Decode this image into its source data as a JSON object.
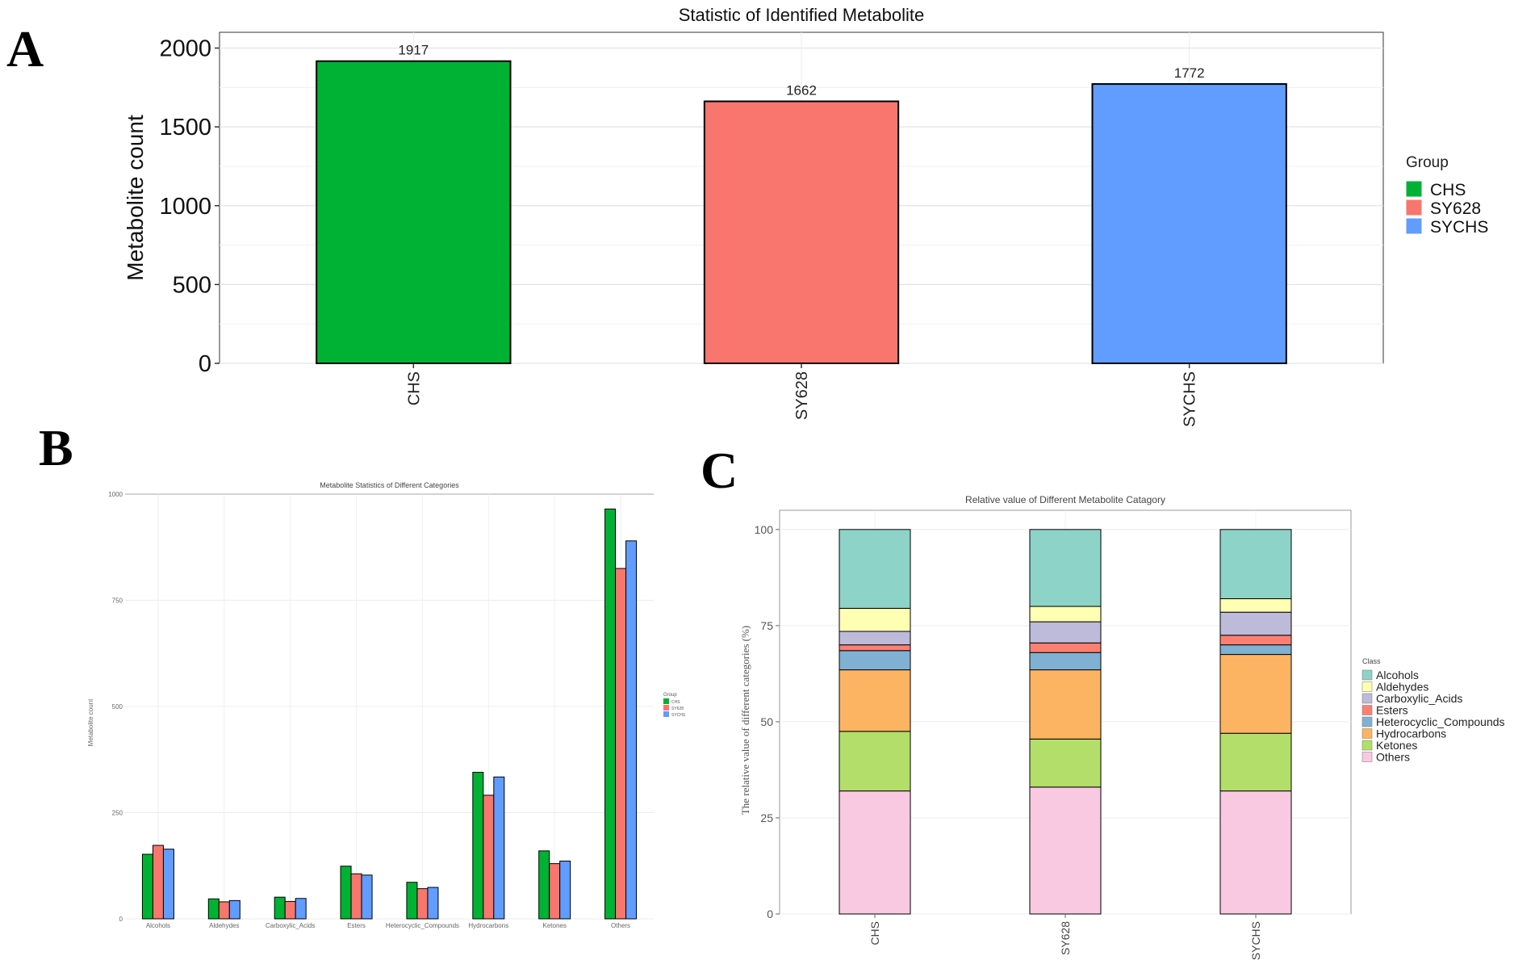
{
  "chart_data": [
    {
      "panel": "A",
      "type": "bar",
      "title": "Statistic of Identified Metabolite",
      "xlabel": "",
      "ylabel": "Metabolite count",
      "ylim": [
        0,
        2100
      ],
      "yticks": [
        0,
        500,
        1000,
        1500,
        2000
      ],
      "categories": [
        "CHS",
        "SY628",
        "SYCHS"
      ],
      "values": [
        1917,
        1662,
        1772
      ],
      "colors": [
        "#00b233",
        "#f8766d",
        "#619cff"
      ],
      "legend": {
        "title": "Group",
        "position": "right",
        "labels": [
          "CHS",
          "SY628",
          "SYCHS"
        ]
      }
    },
    {
      "panel": "B",
      "type": "bar",
      "title": "Metabolite Statistics of Different Categories",
      "xlabel": "",
      "ylabel": "Metabolite count",
      "ylim": [
        0,
        1000
      ],
      "yticks": [
        0,
        250,
        500,
        750,
        1000
      ],
      "categories": [
        "Alcohols",
        "Aldehydes",
        "Carboxylic_Acids",
        "Esters",
        "Heterocyclic_Compounds",
        "Hydrocarbons",
        "Ketones",
        "Others"
      ],
      "series": [
        {
          "name": "CHS",
          "color": "#00b233",
          "values": [
            152,
            47,
            51,
            124,
            86,
            345,
            160,
            965
          ]
        },
        {
          "name": "SY628",
          "color": "#f8766d",
          "values": [
            173,
            40,
            41,
            106,
            71,
            291,
            130,
            825
          ]
        },
        {
          "name": "SYCHS",
          "color": "#619cff",
          "values": [
            164,
            43,
            48,
            103,
            74,
            334,
            136,
            890
          ]
        }
      ],
      "legend": {
        "title": "Group",
        "position": "right"
      }
    },
    {
      "panel": "C",
      "type": "bar",
      "stacked": true,
      "title": "Relative value of Different Metabolite Catagory",
      "xlabel": "",
      "ylabel": "The relative value of different categories (%)",
      "ylim": [
        0,
        105
      ],
      "yticks": [
        0,
        25,
        50,
        75,
        100
      ],
      "categories": [
        "CHS",
        "SY628",
        "SYCHS"
      ],
      "series": [
        {
          "name": "Others",
          "color": "#f9c9e2",
          "values": [
            32,
            33,
            32
          ]
        },
        {
          "name": "Ketones",
          "color": "#b3de69",
          "values": [
            15.5,
            12.5,
            15
          ]
        },
        {
          "name": "Hydrocarbons",
          "color": "#fdb462",
          "values": [
            16,
            18,
            20.5
          ]
        },
        {
          "name": "Heterocyclic_Compounds",
          "color": "#80b1d3",
          "values": [
            5,
            4.5,
            2.5
          ]
        },
        {
          "name": "Esters",
          "color": "#fb8072",
          "values": [
            1.5,
            2.5,
            2.5
          ]
        },
        {
          "name": "Carboxylic_Acids",
          "color": "#bebada",
          "values": [
            3.5,
            5.5,
            6
          ]
        },
        {
          "name": "Aldehydes",
          "color": "#ffffb3",
          "values": [
            6,
            4,
            3.5
          ]
        },
        {
          "name": "Alcohols",
          "color": "#8dd3c7",
          "values": [
            20.5,
            20,
            18
          ]
        }
      ],
      "legend": {
        "title": "Class",
        "position": "right",
        "labels": [
          "Alcohols",
          "Aldehydes",
          "Carboxylic_Acids",
          "Esters",
          "Heterocyclic_Compounds",
          "Hydrocarbons",
          "Ketones",
          "Others"
        ]
      }
    }
  ],
  "panel_letters": [
    "A",
    "B",
    "C"
  ]
}
